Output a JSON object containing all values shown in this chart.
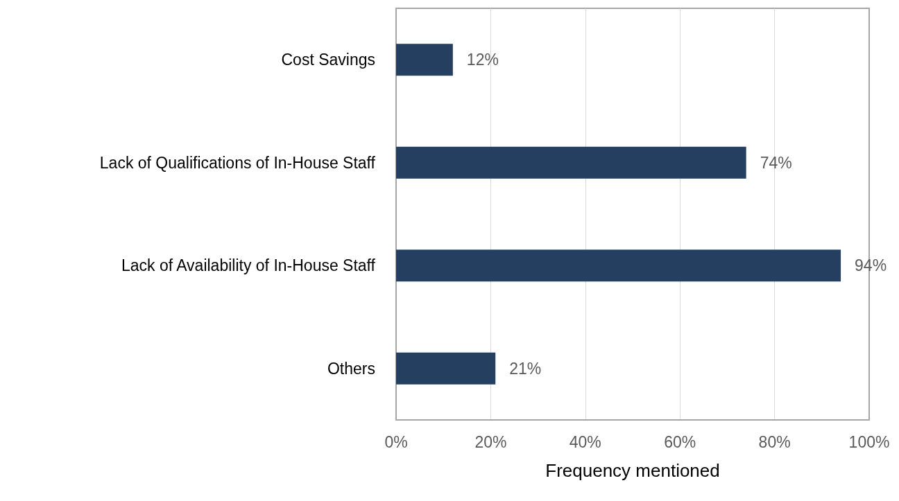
{
  "chart_data": {
    "type": "bar",
    "orientation": "horizontal",
    "categories": [
      "Cost Savings",
      "Lack of Qualifications of In-House Staff",
      "Lack of Availability of In-House Staff",
      "Others"
    ],
    "values": [
      12,
      74,
      94,
      21
    ],
    "value_labels": [
      "12%",
      "74%",
      "94%",
      "21%"
    ],
    "color": "#243f60",
    "xlabel": "Frequency mentioned",
    "xlim": [
      0,
      100
    ],
    "xticks": [
      {
        "value": 0,
        "label": "0%"
      },
      {
        "value": 20,
        "label": "20%"
      },
      {
        "value": 40,
        "label": "40%"
      },
      {
        "value": 60,
        "label": "60%"
      },
      {
        "value": 80,
        "label": "80%"
      },
      {
        "value": 100,
        "label": "100%"
      }
    ],
    "grid": "x"
  }
}
